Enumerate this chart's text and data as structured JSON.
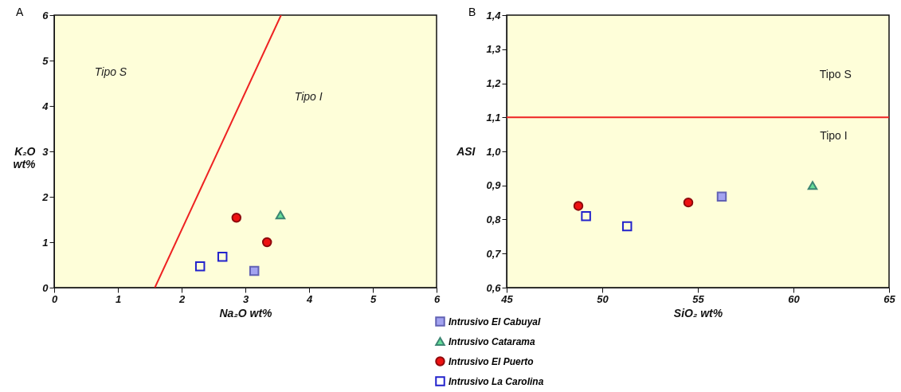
{
  "chart_data": [
    {
      "type": "scatter",
      "title": "A",
      "xlabel": "Na₂O wt%",
      "ylabel": "K₂O wt%",
      "xlim": [
        0,
        6
      ],
      "ylim": [
        0,
        6
      ],
      "xticks": [
        0,
        1,
        2,
        3,
        4,
        5,
        6
      ],
      "yticks": [
        0,
        1,
        2,
        3,
        4,
        5,
        6
      ],
      "grid": false,
      "legend": "bottom right",
      "series": [
        {
          "type": "line",
          "color": "#ee2222",
          "x": [
            1.58,
            3.56
          ],
          "values": [
            0,
            6
          ]
        },
        {
          "name": "Intrusivo El Cabuyal",
          "color": "#a3a3f0",
          "marker": "square",
          "x": [
            3.14
          ],
          "values": [
            0.37
          ]
        },
        {
          "name": "Intrusivo Catarama",
          "color": "#66dd99",
          "marker": "triangle",
          "x": [
            3.55
          ],
          "values": [
            1.6
          ]
        },
        {
          "name": "Intrusivo El Puerto",
          "color": "#ee1111",
          "marker": "circle",
          "x": [
            2.86,
            3.34
          ],
          "values": [
            1.54,
            1.0
          ]
        },
        {
          "name": "Intrusivo La Carolina",
          "color": "#2222cc",
          "marker": "square-open",
          "x": [
            2.29,
            2.64
          ],
          "values": [
            0.47,
            0.68
          ]
        }
      ],
      "annotations": [
        "Tipo S",
        "Tipo I"
      ]
    },
    {
      "type": "scatter",
      "title": "B",
      "xlabel": "SiO₂ wt%",
      "ylabel": "ASI",
      "xlim": [
        45,
        65
      ],
      "ylim": [
        0.6,
        1.4
      ],
      "xticks": [
        45,
        50,
        55,
        60,
        65
      ],
      "yticks": [
        {
          "value": 0.6,
          "label": "0,6"
        },
        {
          "value": 0.7,
          "label": "0,7"
        },
        {
          "value": 0.8,
          "label": "0,8"
        },
        {
          "value": 0.9,
          "label": "0,9"
        },
        {
          "value": 1.0,
          "label": "1,0"
        },
        {
          "value": 1.1,
          "label": "1,1"
        },
        {
          "value": 1.2,
          "label": "1,2"
        },
        {
          "value": 1.3,
          "label": "1,3"
        },
        {
          "value": 1.4,
          "label": "1,4"
        }
      ],
      "grid": false,
      "legend": false,
      "ref_lines": [
        {
          "axis": "y",
          "value": 1.1,
          "color": "#ee2222"
        }
      ],
      "series": [
        {
          "color": "#a3a3f0",
          "marker": "square",
          "x": [
            56.25
          ],
          "values": [
            0.867
          ]
        },
        {
          "color": "#66dd99",
          "marker": "triangle",
          "x": [
            61.0
          ],
          "values": [
            0.9
          ]
        },
        {
          "color": "#ee1111",
          "marker": "circle",
          "x": [
            48.75,
            54.5
          ],
          "values": [
            0.84,
            0.85
          ]
        },
        {
          "color": "#2222cc",
          "marker": "square-open",
          "x": [
            49.15,
            51.3
          ],
          "values": [
            0.81,
            0.78
          ]
        }
      ],
      "annotations": [
        "Tipo S",
        "Tipo I"
      ]
    }
  ]
}
